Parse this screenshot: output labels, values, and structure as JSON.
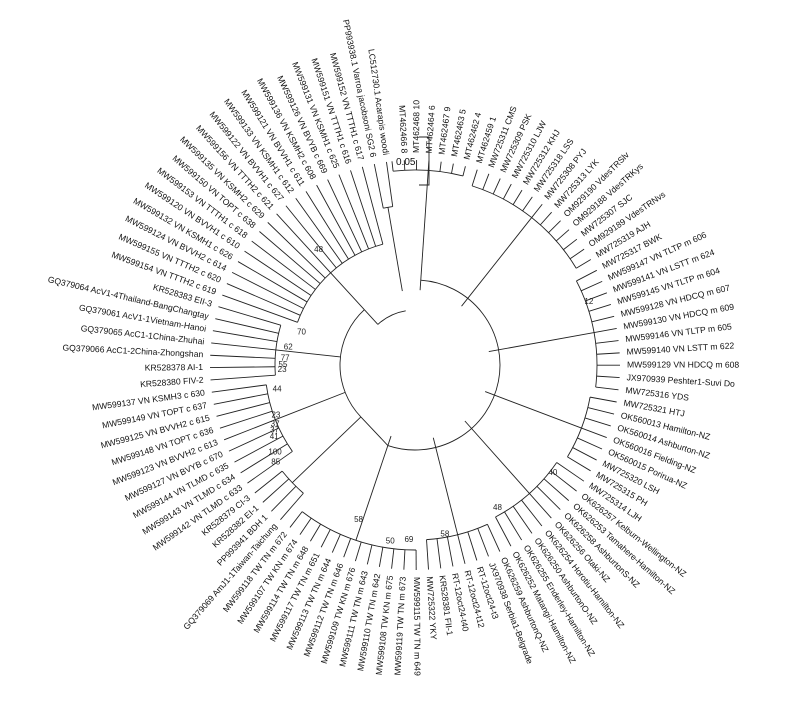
{
  "figure": {
    "type": "circular-phylogenetic-tree",
    "scale_bar": {
      "label": "0.05"
    },
    "leaves": [
      "LC512730.1 Acarapis woodi",
      "PP993938.1 Varroa jacobsoni SG2 6",
      "MW599152 VN TTTH1 c 617",
      "MW599151 VN TTTH1 c 616",
      "MW599131 VN KSMH1 c 625",
      "MW599126 VN BVYB c 669",
      "MW599136 VN KSMH2 c 608",
      "MW599121 VN BVVH1 c 611",
      "MW599133 VN KSMH1 c 612",
      "MW599122 VN BVVH1 c 627",
      "MW599156 VN TTTH2 c 621",
      "MW599135 VN KSMH2 c 629",
      "MW599150 VN TOPT c 638",
      "MW599153 VN TTTH1 c 618",
      "MW599120 VN BVVH1 c 610",
      "MW599132 VN KSMH1 c 626",
      "MW599124 VN BVVH2 c 614",
      "MW599155 VN TTTH2 c 620",
      "MW599154 VN TTTH2 c 619",
      "KR528383 EII-3",
      "GQ379064 AcV1-4Thailand-BangChangtay",
      "GQ379061 AcV1-1Vietnam-Hanoi",
      "GQ379065 AcC1-1China-Zhuhai",
      "GQ379066 AcC1-2China-Zhongshan",
      "KR528378 AI-1",
      "KR528380 FIV-2",
      "MW599137 VN KSMH3 c 630",
      "MW599149 VN TOPT c 637",
      "MW599125 VN BVVH2 c 615",
      "MW599148 VN TOPT c 636",
      "MW599123 VN BVVH2 c 613",
      "MW599127 VN BVYB c 670",
      "MW599144 VN TLMD c 635",
      "MW599143 VN TLMD c 634",
      "MW599142 VN TLMD c 633",
      "KR528379 CI-3",
      "KR528382 EI-1",
      "PP993941 BDH 1",
      "GQ379069 AmJ1-1Taiwan-Taichung",
      "MW599118 TW TN m 672",
      "MW599107 TW KN m 674",
      "MW599114 TW TN m 648",
      "MW599117 TW TN m 651",
      "MW599113 TW TN m 644",
      "MW599112 TW TN m 646",
      "MW599109 TW KN m 676",
      "MW599111 TW TN m 643",
      "MW599110 TW TN m 642",
      "MW599108 TW KN m 675",
      "MW599119 TW TN m 673",
      "MW599115 TW TN m 649",
      "MW725322 YKY",
      "KR528381 FII-1",
      "RT-12oct24-t40",
      "RT-12oct24-t12",
      "RT-12oct24-t3",
      "JX970938 Serbia1-Belgrade",
      "OK626259 AshburtonQ-NZ",
      "OK626252 Matangi-Hamilton-NZ",
      "OK626255 Enderley-Hamilton-NZ",
      "OK626250 AshburtonO-NZ",
      "OK626254 Horotiu-Hamilton-NZ",
      "OK626256 Otaki-NZ",
      "OK626258 AshburtonS-NZ",
      "OK626253 Tamahere-Hamilton-NZ",
      "OK626257 Kelburn-Wellington-NZ",
      "MW725314 LJH",
      "MW725315 PH",
      "MW725320 LSH",
      "OK560015 Porirua-NZ",
      "OK560016 Fielding-NZ",
      "OK560014 Ashburton-NZ",
      "OK560013 Hamilton-NZ",
      "MW725321 HTJ",
      "MW725316 YDS",
      "JX970939 Peshter1-Suvi Do",
      "MW599129 VN HDCQ m 608",
      "MW599140 VN LSTT m 622",
      "MW599146 VN TLTP m 605",
      "MW599130 VN HDCQ m 609",
      "MW599128 VN HDCQ m 607",
      "MW599145 VN TLTP m 604",
      "MW599141 VN LSTT m 624",
      "MW599147 VN TLTP m 606",
      "MW725317 BWK",
      "MW725319 AJH",
      "OM929189 VdesTRNvs",
      "MW725307 SJC",
      "OM929188 VdesTRKys",
      "OM929190 VdesTRSlv",
      "MW725313 LYK",
      "MW725308 PYJ",
      "MW725318 LSS",
      "MW725312 KHJ",
      "MW725310 LJW",
      "MW725309 PSK",
      "MW725311 CMS",
      "MT462459 1",
      "MT462462 4",
      "MT462463 5",
      "MT462467 9",
      "MT462464 6",
      "MT462468 10",
      "MT462466 8"
    ],
    "support_values": [
      "48",
      "70",
      "62",
      "77",
      "55",
      "23",
      "44",
      "23",
      "37",
      "37",
      "41",
      "100",
      "85",
      "58",
      "50",
      "69",
      "58",
      "48",
      "40",
      "12"
    ]
  }
}
